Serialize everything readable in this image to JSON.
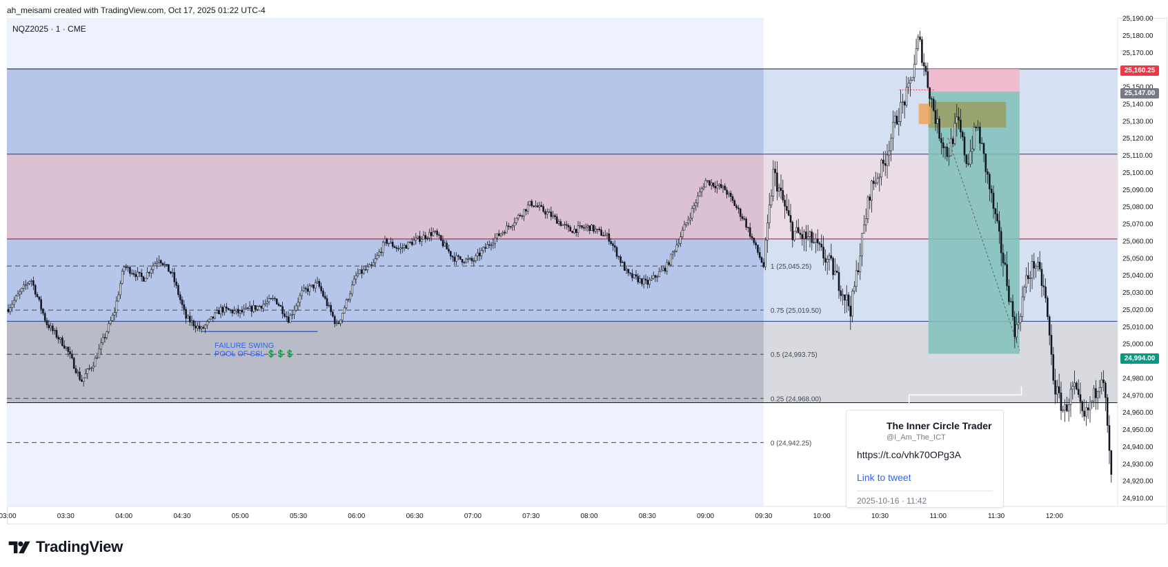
{
  "header": {
    "author_line": "ah_meisami created with TradingView.com, Oct 17, 2025 01:22 UTC-4"
  },
  "symbol": {
    "label": "NQZ2025 · 1 · CME"
  },
  "annotation": {
    "line1": "FAILURE SWING",
    "line2": "POOL OF SSL",
    "emoji": "💲💲💲"
  },
  "badges": {
    "red": "25,160.25",
    "gray": "25,147.00",
    "green": "24,994.00"
  },
  "brand": {
    "name": "TradingView"
  },
  "tweet": {
    "name": "The Inner Circle Trader",
    "handle": "@I_Am_The_ICT",
    "url": "https://t.co/vhk70OPg3A",
    "link": "Link to tweet",
    "date": "2025-10-16 · 11:42"
  },
  "colors": {
    "zone_blue": "#b5c6ea",
    "zone_pink": "#dbc1d2",
    "zone_gray": "#b9bcc6",
    "bg_light": "#eef2fc",
    "stop_red": "#f4b1c6",
    "target_teal": "#7fbfb9",
    "olive": "#9a9b5a",
    "orange": "#f0a35a",
    "badge_red": "#f23645",
    "badge_gray": "#787b86",
    "badge_green": "#089981"
  },
  "chart_data": {
    "type": "candlestick",
    "title": "",
    "xlabel": "",
    "ylabel": "",
    "ylim": [
      24905,
      25190
    ],
    "x_ticks": [
      "03:00",
      "03:30",
      "04:00",
      "04:30",
      "05:00",
      "05:30",
      "06:00",
      "06:30",
      "07:00",
      "07:30",
      "08:00",
      "08:30",
      "09:00",
      "09:30",
      "10:00",
      "10:30",
      "11:00",
      "11:30",
      "12:00"
    ],
    "y_ticks": [
      "25,190.00",
      "25,180.00",
      "25,170.00",
      "25,160.00",
      "25,150.00",
      "25,140.00",
      "25,130.00",
      "25,120.00",
      "25,110.00",
      "25,100.00",
      "25,090.00",
      "25,080.00",
      "25,070.00",
      "25,060.00",
      "25,050.00",
      "25,040.00",
      "25,030.00",
      "25,020.00",
      "25,010.00",
      "25,000.00",
      "24,990.00",
      "24,980.00",
      "24,970.00",
      "24,960.00",
      "24,950.00",
      "24,940.00",
      "24,930.00",
      "24,920.00",
      "24,910.00"
    ],
    "fib_levels": [
      {
        "label": "1 (25,045.25)",
        "value": 25045.25
      },
      {
        "label": "0.75 (25,019.50)",
        "value": 25019.5
      },
      {
        "label": "0.5 (24,993.75)",
        "value": 24993.75
      },
      {
        "label": "0.25 (24,968.00)",
        "value": 24968.0
      },
      {
        "label": "0 (24,942.25)",
        "value": 24942.25
      }
    ],
    "horizontal_lines": [
      25160.25,
      25110.5,
      25061.0,
      25013.0,
      24965.5
    ],
    "zones": [
      {
        "name": "blue-top",
        "from": 25110.5,
        "to": 25160.25
      },
      {
        "name": "pink-mid",
        "from": 25061.0,
        "to": 25110.5
      },
      {
        "name": "blue-low",
        "from": 25013.0,
        "to": 25061.0
      },
      {
        "name": "gray-low",
        "from": 24965.5,
        "to": 25013.0
      }
    ],
    "position": {
      "entry": 25147.0,
      "stop": 25160.25,
      "target": 24994.0
    },
    "price_path": [
      [
        "03:00",
        25020
      ],
      [
        "03:12",
        25038
      ],
      [
        "03:20",
        25012
      ],
      [
        "03:30",
        24998
      ],
      [
        "03:38",
        24978
      ],
      [
        "03:45",
        24990
      ],
      [
        "03:55",
        25018
      ],
      [
        "04:00",
        25045
      ],
      [
        "04:10",
        25038
      ],
      [
        "04:18",
        25050
      ],
      [
        "04:25",
        25040
      ],
      [
        "04:32",
        25015
      ],
      [
        "04:40",
        25008
      ],
      [
        "04:50",
        25020
      ],
      [
        "05:00",
        25018
      ],
      [
        "05:10",
        25022
      ],
      [
        "05:18",
        25026
      ],
      [
        "05:25",
        25014
      ],
      [
        "05:32",
        25030
      ],
      [
        "05:40",
        25035
      ],
      [
        "05:50",
        25010
      ],
      [
        "06:00",
        25040
      ],
      [
        "06:08",
        25045
      ],
      [
        "06:15",
        25060
      ],
      [
        "06:22",
        25055
      ],
      [
        "06:30",
        25060
      ],
      [
        "06:40",
        25065
      ],
      [
        "06:50",
        25050
      ],
      [
        "07:00",
        25048
      ],
      [
        "07:10",
        25060
      ],
      [
        "07:20",
        25070
      ],
      [
        "07:30",
        25082
      ],
      [
        "07:40",
        25075
      ],
      [
        "07:50",
        25066
      ],
      [
        "08:00",
        25068
      ],
      [
        "08:10",
        25062
      ],
      [
        "08:20",
        25040
      ],
      [
        "08:30",
        25035
      ],
      [
        "08:40",
        25045
      ],
      [
        "08:50",
        25070
      ],
      [
        "09:00",
        25095
      ],
      [
        "09:10",
        25090
      ],
      [
        "09:20",
        25072
      ],
      [
        "09:30",
        25045
      ],
      [
        "09:35",
        25100
      ],
      [
        "09:45",
        25065
      ],
      [
        "09:55",
        25060
      ],
      [
        "10:05",
        25045
      ],
      [
        "10:15",
        25020
      ],
      [
        "10:25",
        25090
      ],
      [
        "10:32",
        25105
      ],
      [
        "10:38",
        25130
      ],
      [
        "10:45",
        25148
      ],
      [
        "10:50",
        25178
      ],
      [
        "10:55",
        25150
      ],
      [
        "11:00",
        25125
      ],
      [
        "11:05",
        25110
      ],
      [
        "11:10",
        25130
      ],
      [
        "11:15",
        25105
      ],
      [
        "11:20",
        25128
      ],
      [
        "11:25",
        25100
      ],
      [
        "11:30",
        25070
      ],
      [
        "11:35",
        25040
      ],
      [
        "11:40",
        25005
      ],
      [
        "11:45",
        25035
      ],
      [
        "11:50",
        25048
      ],
      [
        "11:55",
        25030
      ],
      [
        "12:00",
        24975
      ],
      [
        "12:05",
        24960
      ],
      [
        "12:10",
        24975
      ],
      [
        "12:15",
        24955
      ],
      [
        "12:20",
        24968
      ],
      [
        "12:25",
        24985
      ],
      [
        "12:30",
        24910
      ]
    ]
  }
}
